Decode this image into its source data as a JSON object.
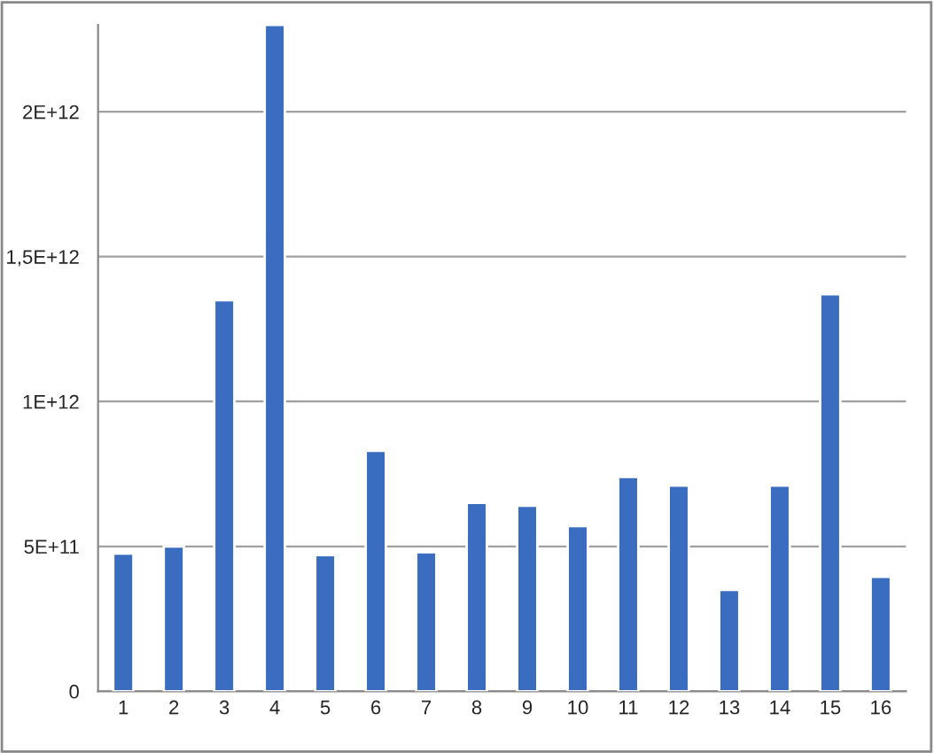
{
  "chart_data": {
    "type": "bar",
    "categories": [
      "1",
      "2",
      "3",
      "4",
      "5",
      "6",
      "7",
      "8",
      "9",
      "10",
      "11",
      "12",
      "13",
      "14",
      "15",
      "16"
    ],
    "values": [
      475000000000.0,
      500000000000.0,
      1350000000000.0,
      2300000000000.0,
      470000000000.0,
      830000000000.0,
      480000000000.0,
      650000000000.0,
      640000000000.0,
      570000000000.0,
      740000000000.0,
      710000000000.0,
      350000000000.0,
      710000000000.0,
      1370000000000.0,
      395000000000.0
    ],
    "color": "#3a6cc0",
    "ylim": [
      0,
      2300000000000.0
    ],
    "yticks": [
      0,
      {
        "value": 500000000000.0,
        "label": "5E+11"
      },
      {
        "value": 1000000000000.0,
        "label": "1E+12"
      },
      {
        "value": 1500000000000.0,
        "label": "1,5E+12"
      },
      {
        "value": 2000000000000.0,
        "label": "2E+12"
      }
    ],
    "grid": "y"
  }
}
